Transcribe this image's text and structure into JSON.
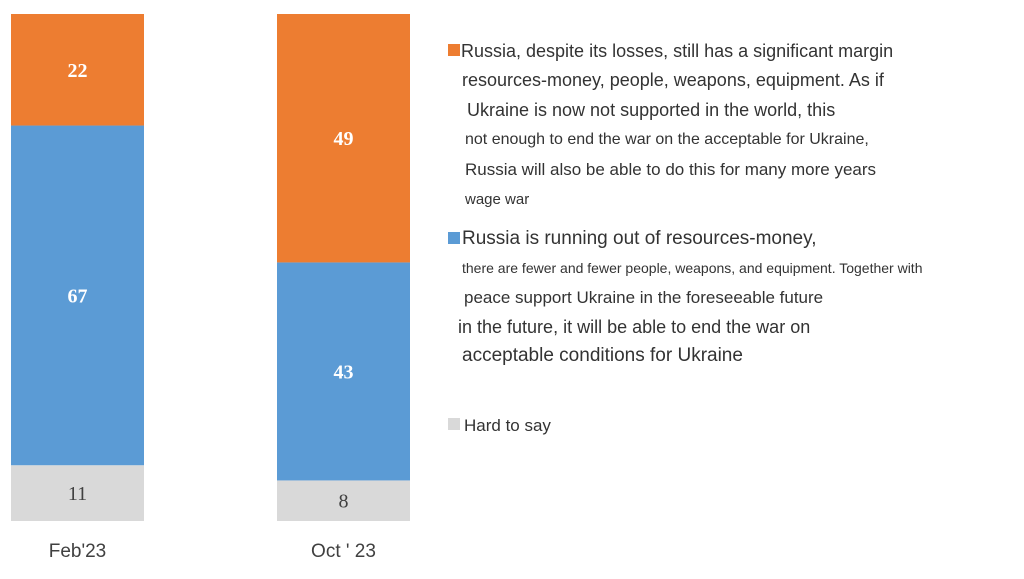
{
  "chart_data": {
    "type": "bar",
    "stacked": true,
    "unit": "%",
    "categories": [
      "Feb'23",
      "Oct ' 23"
    ],
    "ylim": [
      0,
      100
    ],
    "grid": false,
    "legend_position": "right",
    "series": [
      {
        "name": "Hard to say",
        "color": "#d9d9d9",
        "label_color": "#404040",
        "values": [
          11,
          8
        ]
      },
      {
        "name": "Russia is running out of resources-money, there are fewer and fewer people, weapons, and equipment. Together with peace support Ukraine in the foreseeable future in the future, it will be able to end the war on acceptable conditions for Ukraine",
        "color": "#5b9bd5",
        "label_color": "#ffffff",
        "values": [
          67,
          43
        ]
      },
      {
        "name": "Russia, despite its losses, still has a significant margin resources-money, people, weapons, equipment. As if Ukraine is now not supported in the world, this not enough to end the war on the acceptable for Ukraine, Russia will also be able to do this for many more years wage war",
        "color": "#ed7d31",
        "label_color": "#ffffff",
        "values": [
          22,
          49
        ]
      }
    ]
  },
  "legend": {
    "russia_has_resources": [
      "Russia, despite its losses, still has a significant margin",
      "resources-money, people, weapons, equipment. As if",
      "Ukraine is now not supported in the world, this",
      "not enough to end the war on the acceptable for Ukraine,",
      "Russia will also be able to do this for many more years",
      "wage war"
    ],
    "russia_running_out": [
      "Russia is running out of resources-money,",
      "there are fewer and fewer people, weapons, and equipment. Together with",
      "peace support Ukraine in the foreseeable future",
      "in the future, it will be able to end the war on",
      "acceptable conditions for Ukraine"
    ],
    "hard_to_say": "Hard to say"
  }
}
